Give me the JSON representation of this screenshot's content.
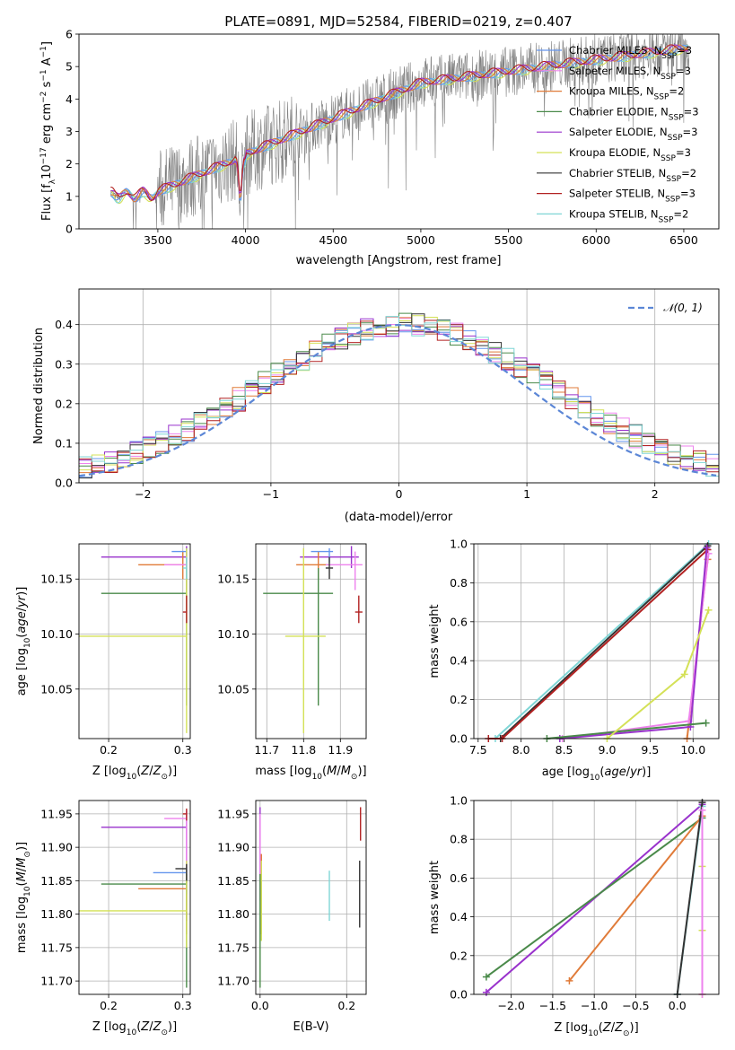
{
  "figure": {
    "title": "PLATE=0891, MJD=52584, FIBERID=0219, z=0.407"
  },
  "legend": {
    "entries": [
      {
        "label": "Chabrier MILES, N",
        "sub": "SSP",
        "tail": "=3",
        "color": "#6495ed"
      },
      {
        "label": "Salpeter MILES, N",
        "sub": "SSP",
        "tail": "=3",
        "color": "#ee82ee"
      },
      {
        "label": "Kroupa MILES, N",
        "sub": "SSP",
        "tail": "=2",
        "color": "#e07b39"
      },
      {
        "label": "Chabrier ELODIE, N",
        "sub": "SSP",
        "tail": "=3",
        "color": "#4a8a4a"
      },
      {
        "label": "Salpeter ELODIE, N",
        "sub": "SSP",
        "tail": "=3",
        "color": "#9932cc"
      },
      {
        "label": "Kroupa ELODIE, N",
        "sub": "SSP",
        "tail": "=3",
        "color": "#d4e157"
      },
      {
        "label": "Chabrier STELIB, N",
        "sub": "SSP",
        "tail": "=2",
        "color": "#333333"
      },
      {
        "label": "Salpeter STELIB, N",
        "sub": "SSP",
        "tail": "=3",
        "color": "#b22222"
      },
      {
        "label": "Kroupa STELIB, N",
        "sub": "SSP",
        "tail": "=2",
        "color": "#7fd6d6"
      }
    ],
    "normal_label": "𝒩(0, 1)",
    "normal_color": "#5b86d6"
  },
  "chart_data": [
    {
      "id": "spectrum",
      "type": "line",
      "xlabel": "wavelength [Angstrom, rest frame]",
      "ylabel": "Flux [f_λ10^-17 erg cm^-2 s^-1 A^-1]",
      "xlim": [
        3050,
        6700
      ],
      "ylim": [
        0,
        6
      ],
      "xticks": [
        3500,
        4000,
        4500,
        5000,
        5500,
        6000,
        6500
      ],
      "yticks": [
        0,
        1,
        2,
        3,
        4,
        5,
        6
      ],
      "data_x_range": [
        3230,
        6530
      ],
      "grid": false
    },
    {
      "id": "residuals",
      "type": "line",
      "xlabel": "(data-model)/error",
      "ylabel": "Normed distribution",
      "xlim": [
        -2.5,
        2.5
      ],
      "ylim": [
        0,
        0.49
      ],
      "xticks": [
        -2,
        -1,
        0,
        1,
        2
      ],
      "yticks": [
        0.0,
        0.1,
        0.2,
        0.3,
        0.4
      ],
      "grid": true,
      "normal_curve": {
        "mean": 0,
        "sigma": 1
      }
    },
    {
      "id": "age-vs-z",
      "type": "scatter",
      "xlabel": "Z [log10(Z/Z⊙)]",
      "ylabel": "age  [log10(age/yr)]",
      "xlim": [
        0.16,
        0.31
      ],
      "ylim": [
        10.005,
        10.182
      ],
      "xticks": [
        0.2,
        0.3
      ],
      "yticks": [
        10.05,
        10.1,
        10.15
      ],
      "grid": true,
      "points": [
        {
          "x": 0.305,
          "y": 10.17,
          "x0": 0.19,
          "x1": 0.305,
          "y0": 10.16,
          "y1": 10.18,
          "c": 4
        },
        {
          "x": 0.3,
          "y": 10.163,
          "x0": 0.24,
          "x1": 0.305,
          "y0": 10.15,
          "y1": 10.175,
          "c": 2
        },
        {
          "x": 0.305,
          "y": 10.163,
          "x0": 0.275,
          "x1": 0.305,
          "y0": 10.14,
          "y1": 10.175,
          "c": 1
        },
        {
          "x": 0.305,
          "y": 10.175,
          "x0": 0.285,
          "x1": 0.305,
          "y0": 10.165,
          "y1": 10.178,
          "c": 0
        },
        {
          "x": 0.305,
          "y": 10.137,
          "x0": 0.19,
          "x1": 0.305,
          "y0": 10.035,
          "y1": 10.16,
          "c": 3
        },
        {
          "x": 0.305,
          "y": 10.098,
          "x0": 0.16,
          "x1": 0.305,
          "y0": 10.01,
          "y1": 10.178,
          "c": 5
        },
        {
          "x": 0.305,
          "y": 10.12,
          "x0": 0.3,
          "x1": 0.305,
          "y0": 10.11,
          "y1": 10.135,
          "c": 7
        },
        {
          "x": 0.305,
          "y": 10.16,
          "x0": 0.3,
          "x1": 0.305,
          "y0": 10.15,
          "y1": 10.17,
          "c": 8
        }
      ]
    },
    {
      "id": "age-vs-mass",
      "type": "scatter",
      "xlabel": "mass [log10(M/M⊙)]",
      "ylabel": "",
      "xlim": [
        11.67,
        11.97
      ],
      "ylim": [
        10.005,
        10.182
      ],
      "xticks": [
        11.7,
        11.8,
        11.9
      ],
      "yticks": [
        10.05,
        10.1,
        10.15
      ],
      "grid": true,
      "points": [
        {
          "x": 11.93,
          "y": 10.17,
          "x0": 11.79,
          "x1": 11.95,
          "y0": 10.16,
          "y1": 10.18,
          "c": 4
        },
        {
          "x": 11.84,
          "y": 10.163,
          "x0": 11.78,
          "x1": 11.87,
          "y0": 10.15,
          "y1": 10.175,
          "c": 2
        },
        {
          "x": 11.94,
          "y": 10.163,
          "x0": 11.86,
          "x1": 11.96,
          "y0": 10.14,
          "y1": 10.175,
          "c": 1
        },
        {
          "x": 11.87,
          "y": 10.175,
          "x0": 11.82,
          "x1": 11.88,
          "y0": 10.165,
          "y1": 10.178,
          "c": 0
        },
        {
          "x": 11.84,
          "y": 10.137,
          "x0": 11.69,
          "x1": 11.88,
          "y0": 10.035,
          "y1": 10.16,
          "c": 3
        },
        {
          "x": 11.8,
          "y": 10.098,
          "x0": 11.75,
          "x1": 11.86,
          "y0": 10.01,
          "y1": 10.178,
          "c": 5
        },
        {
          "x": 11.95,
          "y": 10.12,
          "x0": 11.94,
          "x1": 11.96,
          "y0": 10.11,
          "y1": 10.135,
          "c": 7
        },
        {
          "x": 11.87,
          "y": 10.16,
          "x0": 11.86,
          "x1": 11.88,
          "y0": 10.15,
          "y1": 10.17,
          "c": 6
        }
      ]
    },
    {
      "id": "weight-vs-age",
      "type": "line",
      "xlabel": "age  [log10(age/yr)]",
      "ylabel": "mass weight",
      "xlim": [
        7.45,
        10.3
      ],
      "ylim": [
        0,
        1.0
      ],
      "xticks": [
        7.5,
        8.0,
        8.5,
        9.0,
        9.5,
        10.0
      ],
      "yticks": [
        0.0,
        0.2,
        0.4,
        0.6,
        0.8,
        1.0
      ],
      "grid": true,
      "series": [
        {
          "c": 8,
          "x": [
            7.7,
            10.18
          ],
          "y": [
            0.0,
            1.0
          ]
        },
        {
          "c": 6,
          "x": [
            7.76,
            10.17
          ],
          "y": [
            0.0,
            0.99
          ]
        },
        {
          "c": 7,
          "x": [
            7.62,
            7.78,
            10.17
          ],
          "y": [
            0.0,
            0.0,
            0.97
          ]
        },
        {
          "c": 2,
          "x": [
            9.93,
            10.17
          ],
          "y": [
            0.0,
            0.92
          ]
        },
        {
          "c": 1,
          "x": [
            8.48,
            9.95,
            10.18
          ],
          "y": [
            0.0,
            0.09,
            0.95
          ]
        },
        {
          "c": 4,
          "x": [
            8.45,
            9.97,
            10.16
          ],
          "y": [
            0.0,
            0.06,
            0.98
          ]
        },
        {
          "c": 3,
          "x": [
            8.3,
            10.15
          ],
          "y": [
            0.0,
            0.08
          ]
        },
        {
          "c": 5,
          "x": [
            9.0,
            9.9,
            10.18
          ],
          "y": [
            0.0,
            0.33,
            0.66
          ]
        }
      ]
    },
    {
      "id": "mass-vs-z",
      "type": "scatter",
      "xlabel": "Z [log10(Z/Z⊙)]",
      "ylabel": "mass [log10(M/M⊙)]",
      "xlim": [
        0.16,
        0.31
      ],
      "ylim": [
        11.68,
        11.97
      ],
      "xticks": [
        0.2,
        0.3
      ],
      "yticks": [
        11.7,
        11.75,
        11.8,
        11.85,
        11.9,
        11.95
      ],
      "grid": true,
      "points": [
        {
          "x": 0.305,
          "y": 11.93,
          "x0": 0.19,
          "x1": 0.305,
          "y0": 11.79,
          "y1": 11.955,
          "c": 4
        },
        {
          "x": 0.305,
          "y": 11.943,
          "x0": 0.275,
          "x1": 0.305,
          "y0": 11.86,
          "y1": 11.955,
          "c": 1
        },
        {
          "x": 0.305,
          "y": 11.838,
          "x0": 0.24,
          "x1": 0.305,
          "y0": 11.77,
          "y1": 11.86,
          "c": 2
        },
        {
          "x": 0.305,
          "y": 11.862,
          "x0": 0.26,
          "x1": 0.305,
          "y0": 11.83,
          "y1": 11.87,
          "c": 0
        },
        {
          "x": 0.305,
          "y": 11.845,
          "x0": 0.19,
          "x1": 0.305,
          "y0": 11.69,
          "y1": 11.86,
          "c": 3
        },
        {
          "x": 0.305,
          "y": 11.805,
          "x0": 0.16,
          "x1": 0.305,
          "y0": 11.75,
          "y1": 11.88,
          "c": 5
        },
        {
          "x": 0.305,
          "y": 11.95,
          "x0": 0.3,
          "x1": 0.305,
          "y0": 11.94,
          "y1": 11.958,
          "c": 7
        },
        {
          "x": 0.305,
          "y": 11.868,
          "x0": 0.29,
          "x1": 0.305,
          "y0": 11.85,
          "y1": 11.875,
          "c": 6
        }
      ]
    },
    {
      "id": "mass-vs-ebv",
      "type": "scatter",
      "xlabel": "E(B-V)",
      "ylabel": "",
      "xlim": [
        -0.01,
        0.245
      ],
      "ylim": [
        11.68,
        11.97
      ],
      "xticks": [
        0.0,
        0.2
      ],
      "yticks": [
        11.7,
        11.75,
        11.8,
        11.85,
        11.9,
        11.95
      ],
      "grid": true,
      "points": [
        {
          "x": 0.0,
          "y": 11.93,
          "y0": 11.85,
          "y1": 11.96,
          "c": 4
        },
        {
          "x": 0.0,
          "y": 11.9,
          "y0": 11.82,
          "y1": 11.95,
          "c": 1
        },
        {
          "x": 0.003,
          "y": 11.84,
          "y0": 11.77,
          "y1": 11.89,
          "c": 2
        },
        {
          "x": 0.0,
          "y": 11.84,
          "y0": 11.69,
          "y1": 11.86,
          "c": 3
        },
        {
          "x": 0.003,
          "y": 11.8,
          "y0": 11.76,
          "y1": 11.88,
          "c": 5
        },
        {
          "x": 0.16,
          "y": 11.83,
          "y0": 11.79,
          "y1": 11.865,
          "c": 8
        },
        {
          "x": 0.23,
          "y": 11.83,
          "y0": 11.78,
          "y1": 11.88,
          "c": 6
        },
        {
          "x": 0.232,
          "y": 11.935,
          "y0": 11.91,
          "y1": 11.96,
          "c": 7
        }
      ]
    },
    {
      "id": "weight-vs-z",
      "type": "line",
      "xlabel": "Z [log10(Z/Z⊙)]",
      "ylabel": "mass weight",
      "xlim": [
        -2.45,
        0.5
      ],
      "ylim": [
        0,
        1.0
      ],
      "xticks": [
        -2.0,
        -1.5,
        -1.0,
        -0.5,
        0.0
      ],
      "yticks": [
        0.0,
        0.2,
        0.4,
        0.6,
        0.8,
        1.0
      ],
      "grid": true,
      "series": [
        {
          "c": 4,
          "x": [
            -2.3,
            0.3
          ],
          "y": [
            0.01,
            0.98
          ]
        },
        {
          "c": 3,
          "x": [
            -2.3,
            0.3
          ],
          "y": [
            0.09,
            0.91
          ]
        },
        {
          "c": 2,
          "x": [
            -1.3,
            0.3
          ],
          "y": [
            0.07,
            0.92
          ]
        },
        {
          "c": 8,
          "x": [
            0.0,
            0.3
          ],
          "y": [
            0.0,
            0.97
          ]
        },
        {
          "c": 6,
          "x": [
            0.0,
            0.3
          ],
          "y": [
            0.0,
            0.99
          ]
        },
        {
          "c": 5,
          "x": [
            0.3,
            0.3,
            0.3
          ],
          "y": [
            0.0,
            0.33,
            0.66
          ]
        },
        {
          "c": 1,
          "x": [
            0.3,
            0.3
          ],
          "y": [
            0.0,
            0.95
          ]
        }
      ]
    }
  ]
}
